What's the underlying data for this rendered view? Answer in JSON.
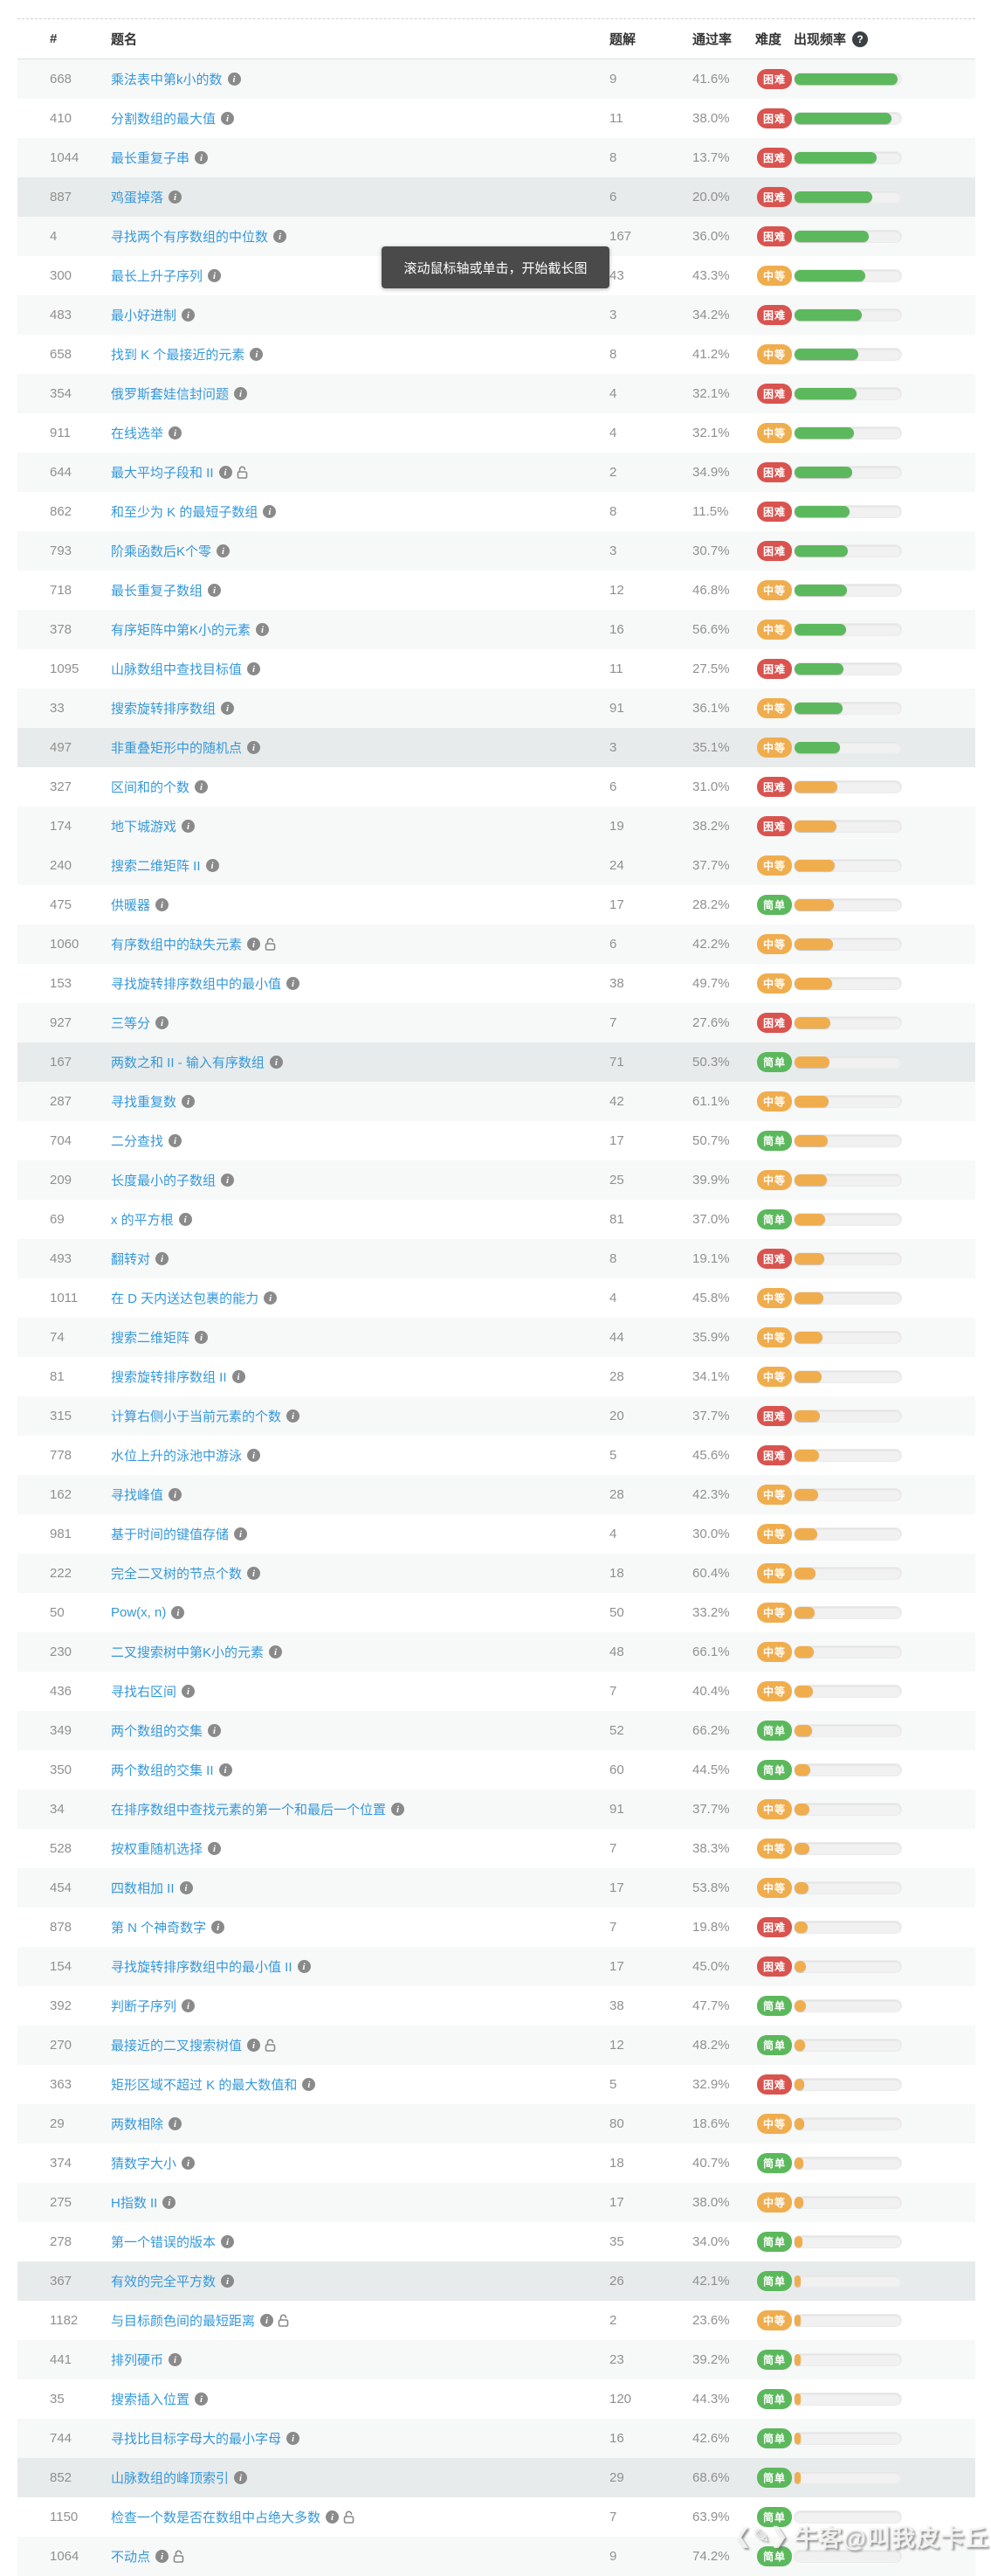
{
  "table": {
    "columns": {
      "num": "#",
      "title": "题名",
      "solutions": "题解",
      "pass_rate": "通过率",
      "difficulty": "难度",
      "frequency": "出现频率"
    },
    "difficulty_labels": {
      "hard": "困难",
      "medium": "中等",
      "easy": "简单"
    },
    "row_fields": [
      "num",
      "title",
      "locked",
      "solutions",
      "pass_rate",
      "difficulty",
      "frequency_pct",
      "bar_color",
      "shade"
    ],
    "rows": [
      [
        668,
        "乘法表中第k小的数",
        false,
        9,
        "41.6%",
        "hard",
        97,
        "g",
        "odd"
      ],
      [
        410,
        "分割数组的最大值",
        false,
        11,
        "38.0%",
        "hard",
        91,
        "g",
        "even"
      ],
      [
        1044,
        "最长重复子串",
        false,
        8,
        "13.7%",
        "hard",
        77,
        "g",
        "odd"
      ],
      [
        887,
        "鸡蛋掉落",
        false,
        6,
        "20.0%",
        "hard",
        73,
        "g",
        "hl"
      ],
      [
        4,
        "寻找两个有序数组的中位数",
        false,
        167,
        "36.0%",
        "hard",
        70,
        "g",
        "odd"
      ],
      [
        300,
        "最长上升子序列",
        false,
        43,
        "43.3%",
        "medium",
        66,
        "g",
        "even"
      ],
      [
        483,
        "最小好进制",
        false,
        3,
        "34.2%",
        "hard",
        63,
        "g",
        "odd"
      ],
      [
        658,
        "找到 K 个最接近的元素",
        false,
        8,
        "41.2%",
        "medium",
        60,
        "g",
        "even"
      ],
      [
        354,
        "俄罗斯套娃信封问题",
        false,
        4,
        "32.1%",
        "hard",
        58,
        "g",
        "odd"
      ],
      [
        911,
        "在线选举",
        false,
        4,
        "32.1%",
        "medium",
        56,
        "g",
        "even"
      ],
      [
        644,
        "最大平均子段和 II",
        true,
        2,
        "34.9%",
        "hard",
        54,
        "g",
        "odd"
      ],
      [
        862,
        "和至少为 K 的最短子数组",
        false,
        8,
        "11.5%",
        "hard",
        52,
        "g",
        "even"
      ],
      [
        793,
        "阶乘函数后K个零",
        false,
        3,
        "30.7%",
        "hard",
        50,
        "g",
        "odd"
      ],
      [
        718,
        "最长重复子数组",
        false,
        12,
        "46.8%",
        "medium",
        49,
        "g",
        "even"
      ],
      [
        378,
        "有序矩阵中第K小的元素",
        false,
        16,
        "56.6%",
        "medium",
        48,
        "g",
        "odd"
      ],
      [
        1095,
        "山脉数组中查找目标值",
        false,
        11,
        "27.5%",
        "hard",
        46,
        "g",
        "even"
      ],
      [
        33,
        "搜索旋转排序数组",
        false,
        91,
        "36.1%",
        "medium",
        45,
        "g",
        "odd"
      ],
      [
        497,
        "非重叠矩形中的随机点",
        false,
        3,
        "35.1%",
        "medium",
        43,
        "g",
        "hl"
      ],
      [
        327,
        "区间和的个数",
        false,
        6,
        "31.0%",
        "hard",
        40,
        "o",
        "even"
      ],
      [
        174,
        "地下城游戏",
        false,
        19,
        "38.2%",
        "hard",
        39,
        "o",
        "odd"
      ],
      [
        240,
        "搜索二维矩阵 II",
        false,
        24,
        "37.7%",
        "medium",
        38,
        "o",
        "odd"
      ],
      [
        475,
        "供暖器",
        false,
        17,
        "28.2%",
        "easy",
        37,
        "o",
        "even"
      ],
      [
        1060,
        "有序数组中的缺失元素",
        true,
        6,
        "42.2%",
        "medium",
        36,
        "o",
        "odd"
      ],
      [
        153,
        "寻找旋转排序数组中的最小值",
        false,
        38,
        "49.7%",
        "medium",
        35,
        "o",
        "even"
      ],
      [
        927,
        "三等分",
        false,
        7,
        "27.6%",
        "hard",
        34,
        "o",
        "odd"
      ],
      [
        167,
        "两数之和 II - 输入有序数组",
        false,
        71,
        "50.3%",
        "easy",
        33,
        "o",
        "hl"
      ],
      [
        287,
        "寻找重复数",
        false,
        42,
        "61.1%",
        "medium",
        32,
        "o",
        "odd"
      ],
      [
        704,
        "二分查找",
        false,
        17,
        "50.7%",
        "easy",
        31,
        "o",
        "even"
      ],
      [
        209,
        "长度最小的子数组",
        false,
        25,
        "39.9%",
        "medium",
        30,
        "o",
        "odd"
      ],
      [
        69,
        "x 的平方根",
        false,
        81,
        "37.0%",
        "easy",
        29,
        "o",
        "even"
      ],
      [
        493,
        "翻转对",
        false,
        8,
        "19.1%",
        "hard",
        28,
        "o",
        "odd"
      ],
      [
        1011,
        "在 D 天内送达包裹的能力",
        false,
        4,
        "45.8%",
        "medium",
        27,
        "o",
        "even"
      ],
      [
        74,
        "搜索二维矩阵",
        false,
        44,
        "35.9%",
        "medium",
        26,
        "o",
        "odd"
      ],
      [
        81,
        "搜索旋转排序数组 II",
        false,
        28,
        "34.1%",
        "medium",
        25,
        "o",
        "even"
      ],
      [
        315,
        "计算右侧小于当前元素的个数",
        false,
        20,
        "37.7%",
        "hard",
        24,
        "o",
        "odd"
      ],
      [
        778,
        "水位上升的泳池中游泳",
        false,
        5,
        "45.6%",
        "hard",
        23,
        "o",
        "even"
      ],
      [
        162,
        "寻找峰值",
        false,
        28,
        "42.3%",
        "medium",
        22,
        "o",
        "odd"
      ],
      [
        981,
        "基于时间的键值存储",
        false,
        4,
        "30.0%",
        "medium",
        21,
        "o",
        "even"
      ],
      [
        222,
        "完全二叉树的节点个数",
        false,
        18,
        "60.4%",
        "medium",
        20,
        "o",
        "odd"
      ],
      [
        50,
        "Pow(x, n)",
        false,
        50,
        "33.2%",
        "medium",
        19,
        "o",
        "even"
      ],
      [
        230,
        "二叉搜索树中第K小的元素",
        false,
        48,
        "66.1%",
        "medium",
        18,
        "o",
        "odd"
      ],
      [
        436,
        "寻找右区间",
        false,
        7,
        "40.4%",
        "medium",
        17,
        "o",
        "even"
      ],
      [
        349,
        "两个数组的交集",
        false,
        52,
        "66.2%",
        "easy",
        16,
        "o",
        "odd"
      ],
      [
        350,
        "两个数组的交集 II",
        false,
        60,
        "44.5%",
        "easy",
        15,
        "o",
        "even"
      ],
      [
        34,
        "在排序数组中查找元素的第一个和最后一个位置",
        false,
        91,
        "37.7%",
        "medium",
        14,
        "o",
        "odd"
      ],
      [
        528,
        "按权重随机选择",
        false,
        7,
        "38.3%",
        "medium",
        14,
        "o",
        "even"
      ],
      [
        454,
        "四数相加 II",
        false,
        17,
        "53.8%",
        "medium",
        13,
        "o",
        "odd"
      ],
      [
        878,
        "第 N 个神奇数字",
        false,
        7,
        "19.8%",
        "hard",
        12,
        "o",
        "even"
      ],
      [
        154,
        "寻找旋转排序数组中的最小值 II",
        false,
        17,
        "45.0%",
        "hard",
        11,
        "o",
        "odd"
      ],
      [
        392,
        "判断子序列",
        false,
        38,
        "47.7%",
        "easy",
        11,
        "o",
        "even"
      ],
      [
        270,
        "最接近的二叉搜索树值",
        true,
        12,
        "48.2%",
        "easy",
        10,
        "o",
        "odd"
      ],
      [
        363,
        "矩形区域不超过 K 的最大数值和",
        false,
        5,
        "32.9%",
        "hard",
        9,
        "o",
        "even"
      ],
      [
        29,
        "两数相除",
        false,
        80,
        "18.6%",
        "medium",
        9,
        "o",
        "odd"
      ],
      [
        374,
        "猜数字大小",
        false,
        18,
        "40.7%",
        "easy",
        8,
        "o",
        "even"
      ],
      [
        275,
        "H指数 II",
        false,
        17,
        "38.0%",
        "medium",
        8,
        "o",
        "odd"
      ],
      [
        278,
        "第一个错误的版本",
        false,
        35,
        "34.0%",
        "easy",
        7,
        "o",
        "even"
      ],
      [
        367,
        "有效的完全平方数",
        false,
        26,
        "42.1%",
        "easy",
        6,
        "o",
        "hl"
      ],
      [
        1182,
        "与目标颜色间的最短距离",
        true,
        2,
        "23.6%",
        "medium",
        5,
        "o",
        "even"
      ],
      [
        441,
        "排列硬币",
        false,
        23,
        "39.2%",
        "easy",
        5,
        "o",
        "odd"
      ],
      [
        35,
        "搜索插入位置",
        false,
        120,
        "44.3%",
        "easy",
        5,
        "o",
        "even"
      ],
      [
        744,
        "寻找比目标字母大的最小字母",
        false,
        16,
        "42.6%",
        "easy",
        4,
        "o",
        "odd"
      ],
      [
        852,
        "山脉数组的峰顶索引",
        false,
        29,
        "68.6%",
        "easy",
        3,
        "o",
        "hl"
      ],
      [
        1150,
        "检查一个数是否在数组中占绝大多数",
        true,
        7,
        "63.9%",
        "easy",
        0,
        "o",
        "even"
      ],
      [
        1064,
        "不动点",
        true,
        9,
        "74.2%",
        "easy",
        0,
        "o",
        "odd"
      ]
    ]
  },
  "tooltip": {
    "text": "滚动鼠标轴或单击，开始截长图"
  },
  "watermark": {
    "logo": "❮✎❯",
    "text": "牛客@叫我皮卡丘"
  },
  "colors": {
    "difficulty_hard": "#d9534f",
    "difficulty_medium": "#f0ad4e",
    "difficulty_easy": "#5cb85c",
    "bar_green": "#5cb85c",
    "bar_orange": "#f0ad4e",
    "title_link": "#3598db",
    "row_stripe": "#f7f8f8",
    "row_highlight": "#e8ebeb",
    "tooltip_bg": "#4a4a4a"
  }
}
